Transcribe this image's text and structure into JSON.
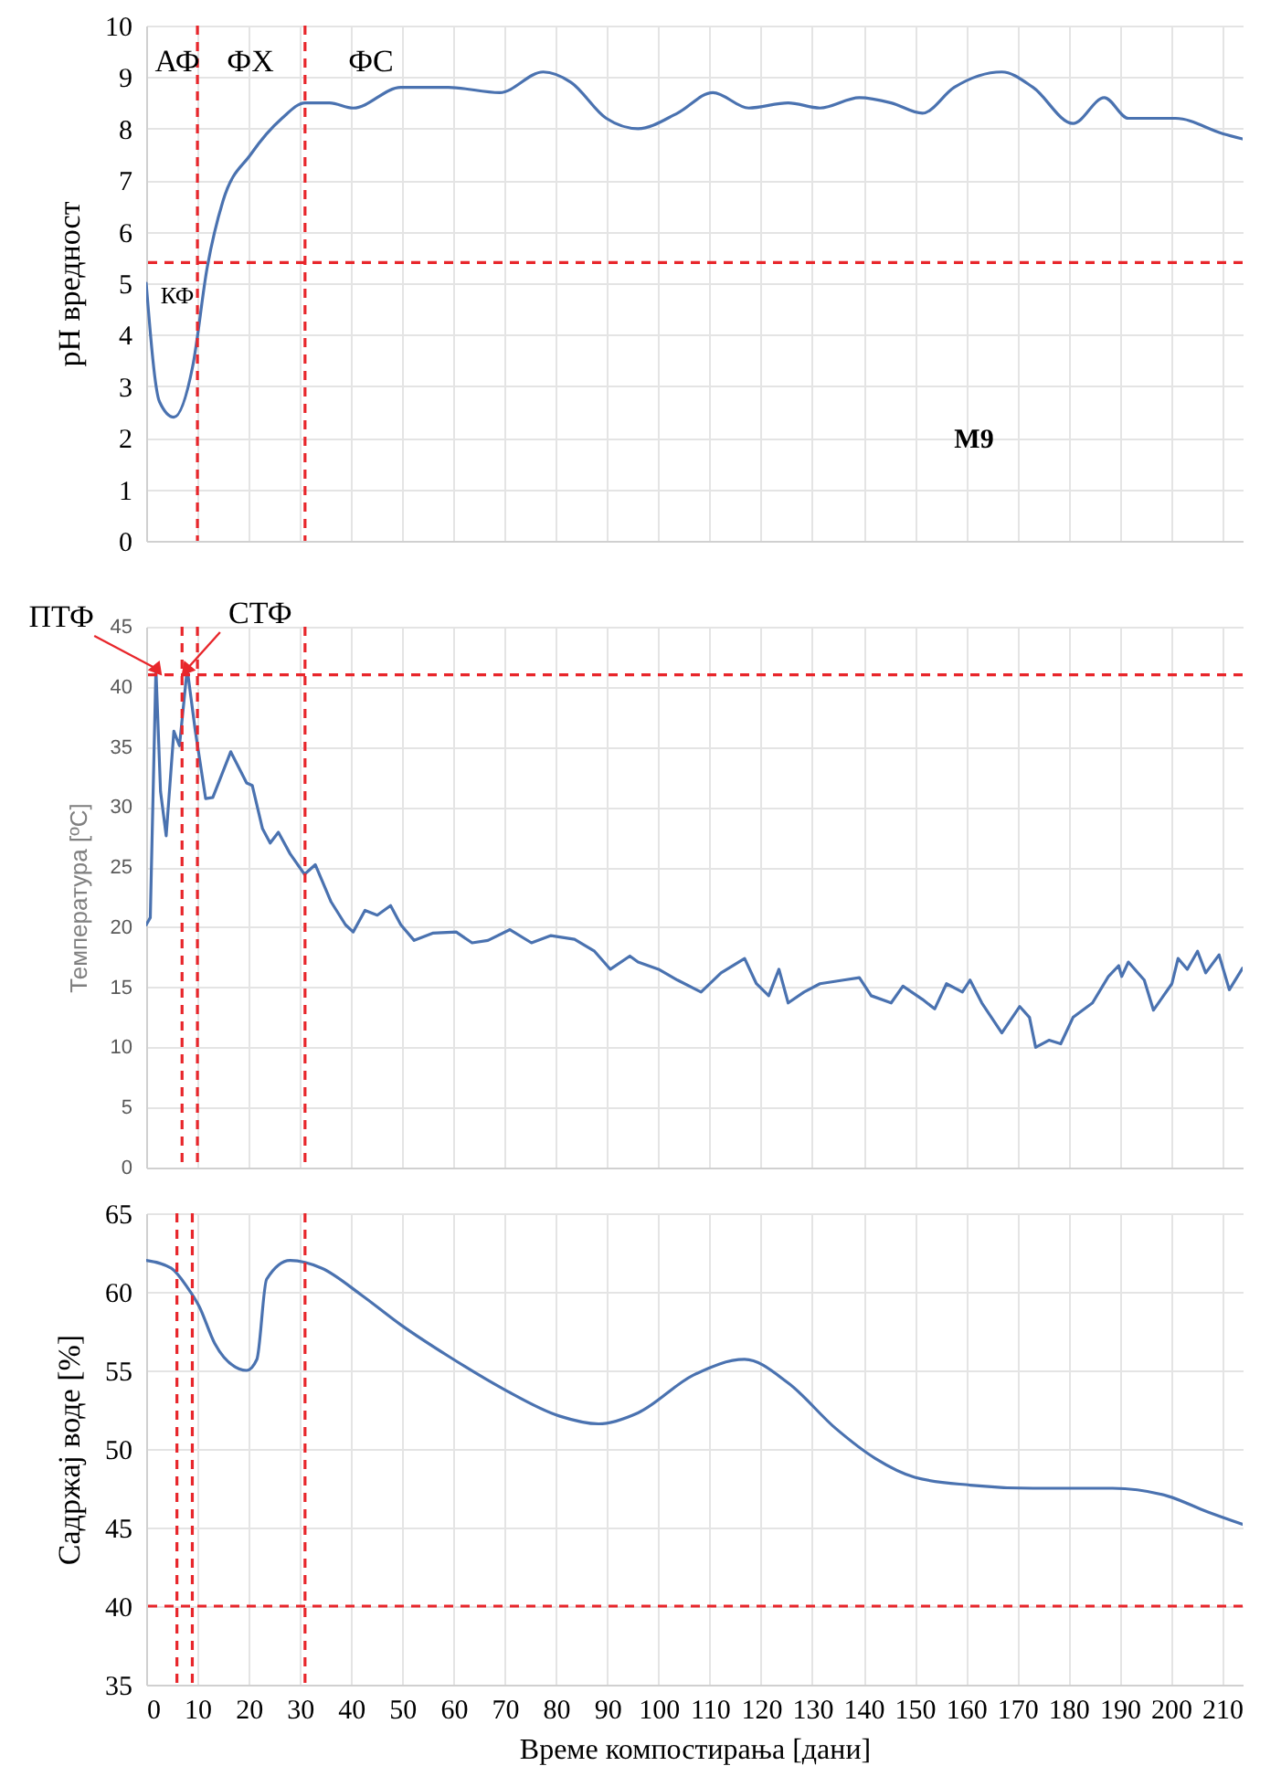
{
  "chart_data": [
    {
      "type": "line",
      "ylabel": "pH вредност",
      "xlim": [
        0,
        214
      ],
      "xticks": [
        0,
        10,
        20,
        30,
        40,
        50,
        60,
        70,
        80,
        90,
        100,
        110,
        120,
        130,
        140,
        150,
        160,
        170,
        180,
        190,
        200,
        210
      ],
      "ylim": [
        0,
        10
      ],
      "yticks": [
        0,
        1,
        2,
        3,
        4,
        5,
        6,
        7,
        8,
        9,
        10
      ],
      "grid": true,
      "tick_labels": "y",
      "x": [
        0,
        2.6,
        5.4,
        9.1,
        11.9,
        15,
        20.4,
        26.5,
        31,
        35.8,
        40.4,
        49.7,
        59,
        69,
        77.5,
        82.9,
        89.8,
        96,
        103.7,
        110.6,
        117.6,
        125.3,
        131.5,
        139.2,
        145.4,
        151.5,
        157.7,
        167,
        173.1,
        180.9,
        187,
        191.7,
        196.3,
        200.9,
        210.2,
        214
      ],
      "series": [
        {
          "color": "#4a72b0",
          "values": [
            5.0,
            2.7,
            2.4,
            3.4,
            5.3,
            6.6,
            7.5,
            8.2,
            8.5,
            8.5,
            8.4,
            8.8,
            8.8,
            8.7,
            9.1,
            8.9,
            8.2,
            8.0,
            8.3,
            8.7,
            8.4,
            8.5,
            8.4,
            8.6,
            8.5,
            8.3,
            8.8,
            9.1,
            8.8,
            8.1,
            8.6,
            8.2,
            8.2,
            8.2,
            7.9,
            7.8
          ]
        }
      ],
      "ref_lines": [
        {
          "axis": "x",
          "value": 10,
          "color": "#e8262b",
          "line_style": "dashed"
        },
        {
          "axis": "x",
          "value": 31,
          "color": "#e8262b",
          "line_style": "dashed"
        },
        {
          "axis": "y",
          "value": 5.4,
          "color": "#e8262b",
          "line_style": "dashed"
        }
      ],
      "annotations": [
        "АФ",
        "ФХ",
        "ФС",
        "КФ",
        "М9"
      ]
    },
    {
      "type": "line",
      "ylabel": "Температура [ºC]",
      "xlim": [
        0,
        214
      ],
      "xticks": [
        0,
        10,
        20,
        30,
        40,
        50,
        60,
        70,
        80,
        90,
        100,
        110,
        120,
        130,
        140,
        150,
        160,
        170,
        180,
        190,
        200,
        210
      ],
      "ylim": [
        0,
        45
      ],
      "yticks": [
        0,
        5,
        10,
        15,
        20,
        25,
        30,
        35,
        40,
        45
      ],
      "grid": true,
      "tick_labels": "y",
      "x": [
        0,
        0.8,
        1.9,
        2.8,
        3.9,
        5.4,
        6.5,
        8,
        9.6,
        11.6,
        13,
        16.5,
        19.6,
        20.7,
        22.7,
        24.2,
        25.8,
        28.1,
        30.9,
        33,
        36.1,
        38.9,
        40.4,
        42.7,
        45.1,
        47.7,
        49.7,
        52.3,
        55.9,
        60.5,
        63.6,
        66.7,
        71,
        75.2,
        79,
        83.6,
        87.5,
        90.6,
        94.4,
        96,
        100,
        103.7,
        108.3,
        112.2,
        116.8,
        119.1,
        121.5,
        123.5,
        125.3,
        128.4,
        131.5,
        136.1,
        139.2,
        141.5,
        145.4,
        147.7,
        151.5,
        153.9,
        156.2,
        159.3,
        160.8,
        163.1,
        167,
        170.5,
        172.4,
        173.6,
        176.2,
        178.5,
        180.9,
        184.7,
        187.8,
        189.8,
        190.4,
        191.7,
        194.8,
        196.6,
        200.2,
        201.4,
        203.2,
        205.2,
        206.8,
        209.4,
        211.4,
        214
      ],
      "series": [
        {
          "color": "#4a72b0",
          "values": [
            20.2,
            20.8,
            41.5,
            31.3,
            27.6,
            36.3,
            35.1,
            41.5,
            36.3,
            30.7,
            30.8,
            34.6,
            32,
            31.8,
            28.2,
            27,
            27.9,
            26.1,
            24.4,
            25.2,
            22.1,
            20.2,
            19.6,
            21.4,
            21,
            21.8,
            20.2,
            18.9,
            19.5,
            19.6,
            18.7,
            18.9,
            19.8,
            18.7,
            19.3,
            19,
            18,
            16.5,
            17.6,
            17.1,
            16.5,
            15.6,
            14.6,
            16.2,
            17.4,
            15.3,
            14.3,
            16.5,
            13.7,
            14.6,
            15.3,
            15.6,
            15.8,
            14.3,
            13.7,
            15.1,
            14,
            13.2,
            15.3,
            14.6,
            15.6,
            13.7,
            11.2,
            13.4,
            12.5,
            10,
            10.6,
            10.3,
            12.5,
            13.7,
            15.9,
            16.8,
            15.9,
            17.1,
            15.6,
            13.1,
            15.3,
            17.4,
            16.5,
            18,
            16.2,
            17.7,
            14.8,
            16.6
          ]
        }
      ],
      "ref_lines": [
        {
          "axis": "x",
          "value": 7,
          "color": "#e8262b",
          "line_style": "dashed"
        },
        {
          "axis": "x",
          "value": 10,
          "color": "#e8262b",
          "line_style": "dashed"
        },
        {
          "axis": "x",
          "value": 31,
          "color": "#e8262b",
          "line_style": "dashed"
        },
        {
          "axis": "y",
          "value": 41,
          "color": "#e8262b",
          "line_style": "dashed"
        }
      ],
      "annotations": [
        {
          "text": "ПТФ",
          "x": 2,
          "y": 41.5
        },
        {
          "text": "СТФ",
          "x": 8,
          "y": 41.5
        }
      ]
    },
    {
      "type": "line",
      "ylabel": "Садржај воде [%]",
      "xlabel": "Време компостирања [дани]",
      "xlim": [
        0,
        214
      ],
      "xticks": [
        0,
        10,
        20,
        30,
        40,
        50,
        60,
        70,
        80,
        90,
        100,
        110,
        120,
        130,
        140,
        150,
        160,
        170,
        180,
        190,
        200,
        210
      ],
      "ylim": [
        35,
        65
      ],
      "yticks": [
        35,
        40,
        45,
        50,
        55,
        60,
        65
      ],
      "grid": true,
      "x": [
        0,
        4.9,
        8,
        10.3,
        13.4,
        18.1,
        19.6,
        21.6,
        23.5,
        28.1,
        34.3,
        42,
        49.7,
        59,
        69.8,
        80.6,
        88.3,
        96,
        106.8,
        116.8,
        125.3,
        134.6,
        142.3,
        150,
        160.8,
        173.1,
        188.6,
        199.4,
        207.1,
        214
      ],
      "series": [
        {
          "color": "#4a72b0",
          "values": [
            62,
            61.5,
            60.3,
            59.1,
            56.7,
            55.1,
            55,
            55.7,
            60.8,
            62,
            61.5,
            59.8,
            57.9,
            55.9,
            53.8,
            52.1,
            51.6,
            52.3,
            54.7,
            55.7,
            54.2,
            51.3,
            49.4,
            48.2,
            47.7,
            47.5,
            47.5,
            47,
            46,
            45.2
          ]
        }
      ],
      "ref_lines": [
        {
          "axis": "x",
          "value": 6,
          "color": "#e8262b",
          "line_style": "dashed"
        },
        {
          "axis": "x",
          "value": 9,
          "color": "#e8262b",
          "line_style": "dashed"
        },
        {
          "axis": "x",
          "value": 31,
          "color": "#e8262b",
          "line_style": "dashed"
        },
        {
          "axis": "y",
          "value": 40,
          "color": "#e8262b",
          "line_style": "dashed"
        }
      ]
    }
  ]
}
